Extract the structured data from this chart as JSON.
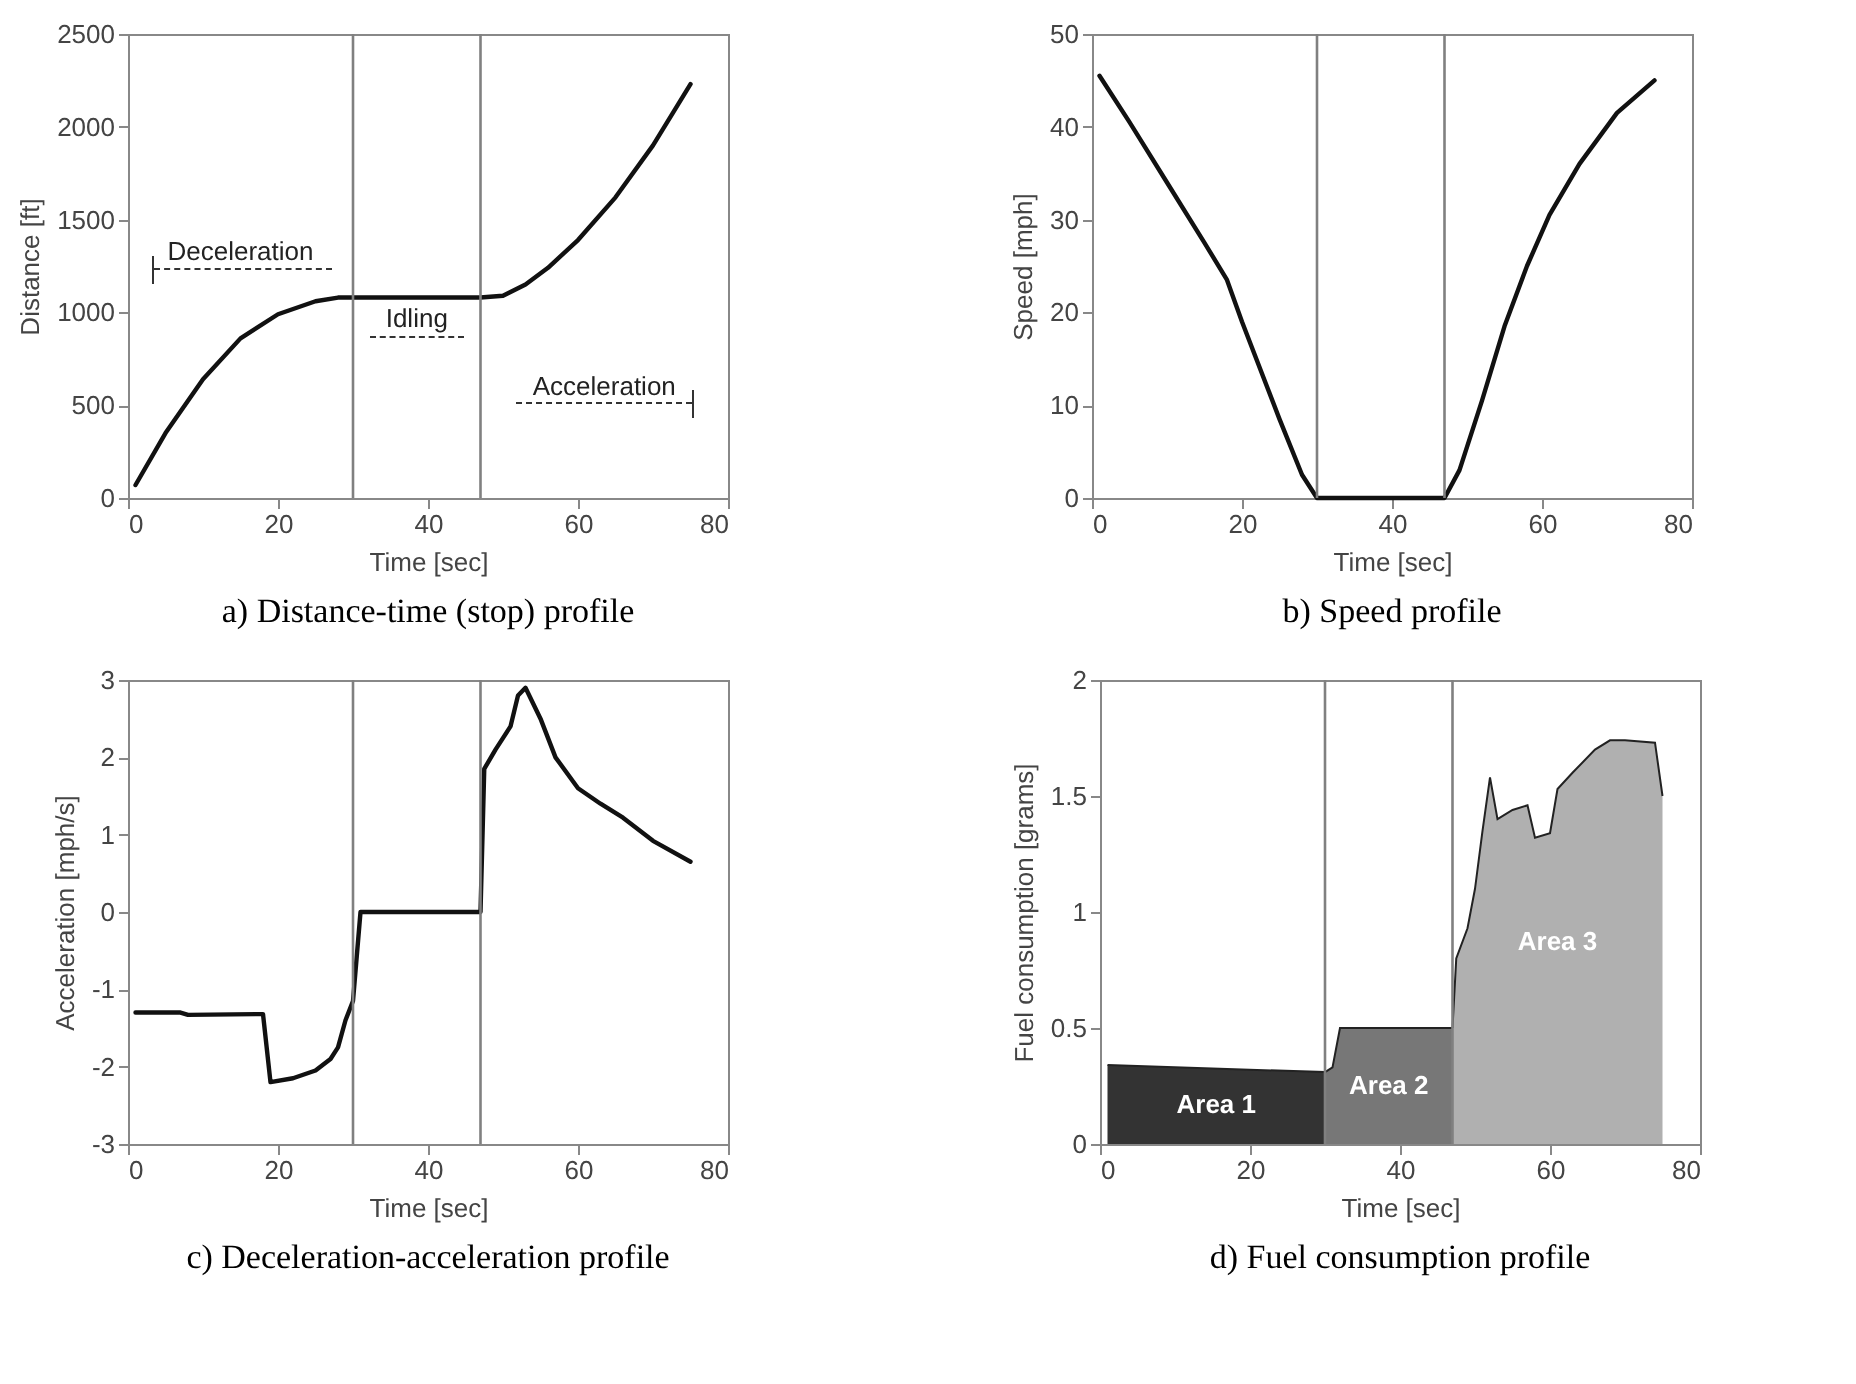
{
  "chart_data": [
    {
      "type": "line",
      "title": "a) Distance-time (stop) profile",
      "xlabel": "Time [sec]",
      "ylabel": "Distance [ft]",
      "series": [
        {
          "color": "#111111",
          "x": [
            1,
            5,
            10,
            15,
            20,
            25,
            28,
            30,
            47,
            50,
            53,
            56,
            60,
            65,
            70,
            75
          ],
          "values": [
            70,
            350,
            640,
            860,
            990,
            1060,
            1080,
            1080,
            1080,
            1090,
            1150,
            1240,
            1390,
            1620,
            1900,
            2230
          ]
        }
      ],
      "xlim": [
        0,
        80
      ],
      "xticks": [
        0,
        20,
        40,
        60,
        80
      ],
      "ylim": [
        0,
        2500
      ],
      "yticks": [
        0,
        500,
        1000,
        1500,
        2000,
        2500
      ],
      "ref_lines": [
        {
          "axis": "x",
          "value": 30,
          "color": "#808080"
        },
        {
          "axis": "x",
          "value": 47,
          "color": "#808080"
        }
      ],
      "annotations": [
        "Deceleration",
        "Idling",
        "Acceleration"
      ],
      "grid": false
    },
    {
      "type": "line",
      "title": "b) Speed profile",
      "xlabel": "Time [sec]",
      "ylabel": "Speed [mph]",
      "series": [
        {
          "color": "#111111",
          "x": [
            1,
            5,
            10,
            15,
            18,
            20,
            25,
            28,
            30,
            47,
            49,
            52,
            55,
            58,
            61,
            65,
            70,
            75
          ],
          "values": [
            45.5,
            40.5,
            34,
            27.5,
            23.5,
            19,
            8.5,
            2.5,
            0,
            0,
            3,
            10.5,
            18.5,
            25,
            30.5,
            36,
            41.5,
            45
          ]
        }
      ],
      "xlim": [
        0,
        80
      ],
      "xticks": [
        0,
        20,
        40,
        60,
        80
      ],
      "ylim": [
        0,
        50
      ],
      "yticks": [
        0,
        10,
        20,
        30,
        40,
        50
      ],
      "ref_lines": [
        {
          "axis": "x",
          "value": 30,
          "color": "#808080"
        },
        {
          "axis": "x",
          "value": 47,
          "color": "#808080"
        }
      ],
      "grid": false
    },
    {
      "type": "line",
      "title": "c) Deceleration-acceleration profile",
      "xlabel": "Time [sec]",
      "ylabel": "Acceleration [mph/s]",
      "series": [
        {
          "color": "#111111",
          "x": [
            1,
            7,
            8,
            18,
            19,
            22,
            25,
            27,
            28,
            29,
            30,
            31,
            47,
            47.5,
            49,
            51,
            52,
            53,
            55,
            57,
            60,
            63,
            66,
            70,
            75
          ],
          "values": [
            -1.3,
            -1.3,
            -1.33,
            -1.32,
            -2.2,
            -2.15,
            -2.05,
            -1.9,
            -1.75,
            -1.4,
            -1.15,
            0,
            0,
            1.85,
            2.1,
            2.4,
            2.8,
            2.9,
            2.5,
            2.0,
            1.6,
            1.4,
            1.22,
            0.92,
            0.65
          ]
        }
      ],
      "xlim": [
        0,
        80
      ],
      "xticks": [
        0,
        20,
        40,
        60,
        80
      ],
      "ylim": [
        -3,
        3
      ],
      "yticks": [
        -3,
        -2,
        -1,
        0,
        1,
        2,
        3
      ],
      "ref_lines": [
        {
          "axis": "x",
          "value": 30,
          "color": "#808080"
        },
        {
          "axis": "x",
          "value": 47,
          "color": "#808080"
        }
      ],
      "grid": false
    },
    {
      "type": "area",
      "title": "d) Fuel consumption profile",
      "xlabel": "Time [sec]",
      "ylabel": "Fuel consumption [grams]",
      "series": [
        {
          "name": "Area 1",
          "color": "#333333",
          "x": [
            1,
            30
          ],
          "values": [
            0.34,
            0.31
          ]
        },
        {
          "name": "Area 2",
          "color": "#777777",
          "x": [
            30,
            31,
            32,
            47
          ],
          "values": [
            0.31,
            0.33,
            0.5,
            0.5
          ]
        },
        {
          "name": "Area 3",
          "color": "#b0b0b0",
          "x": [
            47,
            47.5,
            49,
            50,
            51,
            52,
            53,
            55,
            57,
            58,
            60,
            61,
            63,
            66,
            68,
            70,
            74,
            75
          ],
          "values": [
            0.5,
            0.8,
            0.93,
            1.1,
            1.35,
            1.58,
            1.4,
            1.44,
            1.46,
            1.32,
            1.34,
            1.53,
            1.6,
            1.7,
            1.74,
            1.74,
            1.73,
            1.5
          ]
        }
      ],
      "xlim": [
        0,
        80
      ],
      "xticks": [
        0,
        20,
        40,
        60,
        80
      ],
      "ylim": [
        0,
        2
      ],
      "yticks": [
        0,
        0.5,
        1,
        1.5,
        2
      ],
      "ref_lines": [
        {
          "axis": "x",
          "value": 30,
          "color": "#808080"
        },
        {
          "axis": "x",
          "value": 47,
          "color": "#808080"
        }
      ],
      "grid": false
    }
  ]
}
